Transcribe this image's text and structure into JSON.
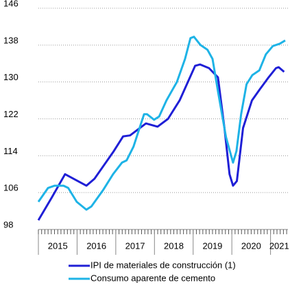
{
  "chart_data": {
    "type": "line",
    "ylim": [
      98,
      146
    ],
    "yticks": [
      98,
      106,
      114,
      122,
      130,
      138,
      146
    ],
    "grid": true,
    "xlim": [
      2015,
      2021.45
    ],
    "xticks": [
      {
        "value": 2015.5,
        "label": "2015"
      },
      {
        "value": 2016.5,
        "label": "2016"
      },
      {
        "value": 2017.5,
        "label": "2017"
      },
      {
        "value": 2018.5,
        "label": "2018"
      },
      {
        "value": 2019.5,
        "label": "2019"
      },
      {
        "value": 2020.5,
        "label": "2020"
      },
      {
        "value": 2021.5,
        "label": "2021"
      }
    ],
    "legend": "bottom",
    "series": [
      {
        "name": "IPI de materiales de construcción (1)",
        "color": "#1f1fd6",
        "x": [
          2015.0,
          2015.35,
          2015.69,
          2016.24,
          2016.45,
          2016.7,
          2016.95,
          2017.19,
          2017.37,
          2017.78,
          2018.08,
          2018.35,
          2018.65,
          2019.05,
          2019.18,
          2019.41,
          2019.64,
          2019.81,
          2019.94,
          2020.03,
          2020.13,
          2020.29,
          2020.52,
          2020.73,
          2020.95,
          2021.14,
          2021.21,
          2021.35
        ],
        "values": [
          100,
          105,
          110,
          107.5,
          109,
          112,
          115,
          118.2,
          118.4,
          121,
          120.3,
          122,
          126,
          133.5,
          133.8,
          133,
          131,
          120,
          110,
          107.5,
          108.5,
          120,
          126,
          128.5,
          131,
          133,
          133.2,
          132.2
        ]
      },
      {
        "name": "Consumo aparente de cemento",
        "color": "#1eb3e6",
        "x": [
          2015.0,
          2015.25,
          2015.42,
          2015.65,
          2015.77,
          2015.99,
          2016.24,
          2016.37,
          2016.67,
          2016.93,
          2017.16,
          2017.28,
          2017.46,
          2017.73,
          2017.81,
          2017.99,
          2018.12,
          2018.31,
          2018.58,
          2018.79,
          2018.93,
          2019.02,
          2019.19,
          2019.37,
          2019.5,
          2019.64,
          2019.85,
          2020.03,
          2020.12,
          2020.24,
          2020.38,
          2020.53,
          2020.71,
          2020.88,
          2021.06,
          2021.24,
          2021.38
        ],
        "values": [
          104,
          107,
          107.5,
          107.5,
          107,
          104,
          102.3,
          103,
          106.5,
          110,
          112.5,
          113,
          116,
          123,
          123,
          121.8,
          122.5,
          126,
          130,
          135,
          139.5,
          139.8,
          138,
          137,
          135,
          128,
          118,
          112.5,
          115,
          123,
          129.5,
          131.5,
          132.5,
          136,
          137.8,
          138.3,
          139
        ]
      }
    ]
  }
}
